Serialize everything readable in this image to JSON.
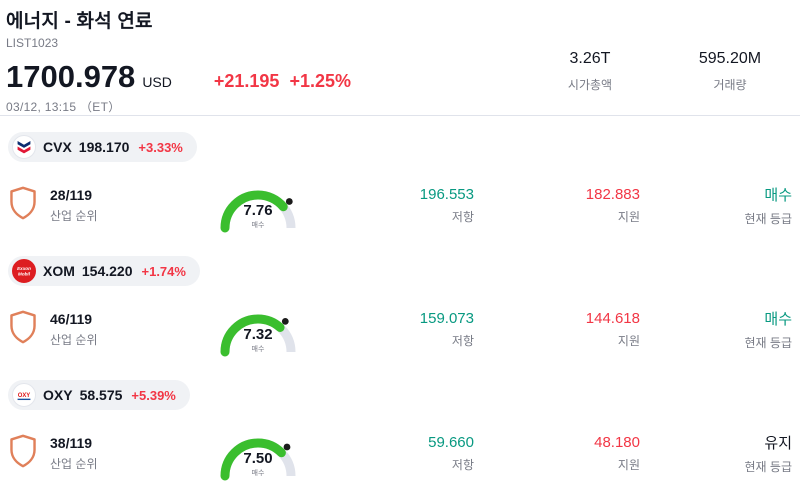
{
  "header": {
    "title": "에너지 - 화석 연료",
    "list_id": "LIST1023",
    "price": "1700.978",
    "currency": "USD",
    "change": "+21.195",
    "change_pct": "+1.25%",
    "datetime": "03/12, 13:15 （ET）",
    "market_cap": {
      "value": "3.26T",
      "label": "시가총액"
    },
    "volume": {
      "value": "595.20M",
      "label": "거래량"
    }
  },
  "colors": {
    "up": "#089981",
    "down": "#f23645",
    "gauge_green": "#3abe2e",
    "gauge_track": "#e0e3eb",
    "gauge_dot": "#1b1b1b"
  },
  "stocks": [
    {
      "ticker": "CVX",
      "price": "198.170",
      "change_pct": "+3.33%",
      "rank": "28/119",
      "rank_label": "산업 순위",
      "gauge": {
        "value": 7.76,
        "max": 10,
        "display": "7.76",
        "label": "매수"
      },
      "resistance": {
        "value": "196.553",
        "label": "저항"
      },
      "support": {
        "value": "182.883",
        "label": "지원"
      },
      "rating": {
        "value": "매수",
        "label": "현재 등급",
        "color": "#089981"
      }
    },
    {
      "ticker": "XOM",
      "price": "154.220",
      "change_pct": "+1.74%",
      "rank": "46/119",
      "rank_label": "산업 순위",
      "gauge": {
        "value": 7.32,
        "max": 10,
        "display": "7.32",
        "label": "매수"
      },
      "resistance": {
        "value": "159.073",
        "label": "저항"
      },
      "support": {
        "value": "144.618",
        "label": "지원"
      },
      "rating": {
        "value": "매수",
        "label": "현재 등급",
        "color": "#089981"
      }
    },
    {
      "ticker": "OXY",
      "price": "58.575",
      "change_pct": "+5.39%",
      "rank": "38/119",
      "rank_label": "산업 순위",
      "gauge": {
        "value": 7.5,
        "max": 10,
        "display": "7.50",
        "label": "매수"
      },
      "resistance": {
        "value": "59.660",
        "label": "저항"
      },
      "support": {
        "value": "48.180",
        "label": "지원"
      },
      "rating": {
        "value": "유지",
        "label": "현재 등급",
        "color": "#131722"
      }
    }
  ]
}
